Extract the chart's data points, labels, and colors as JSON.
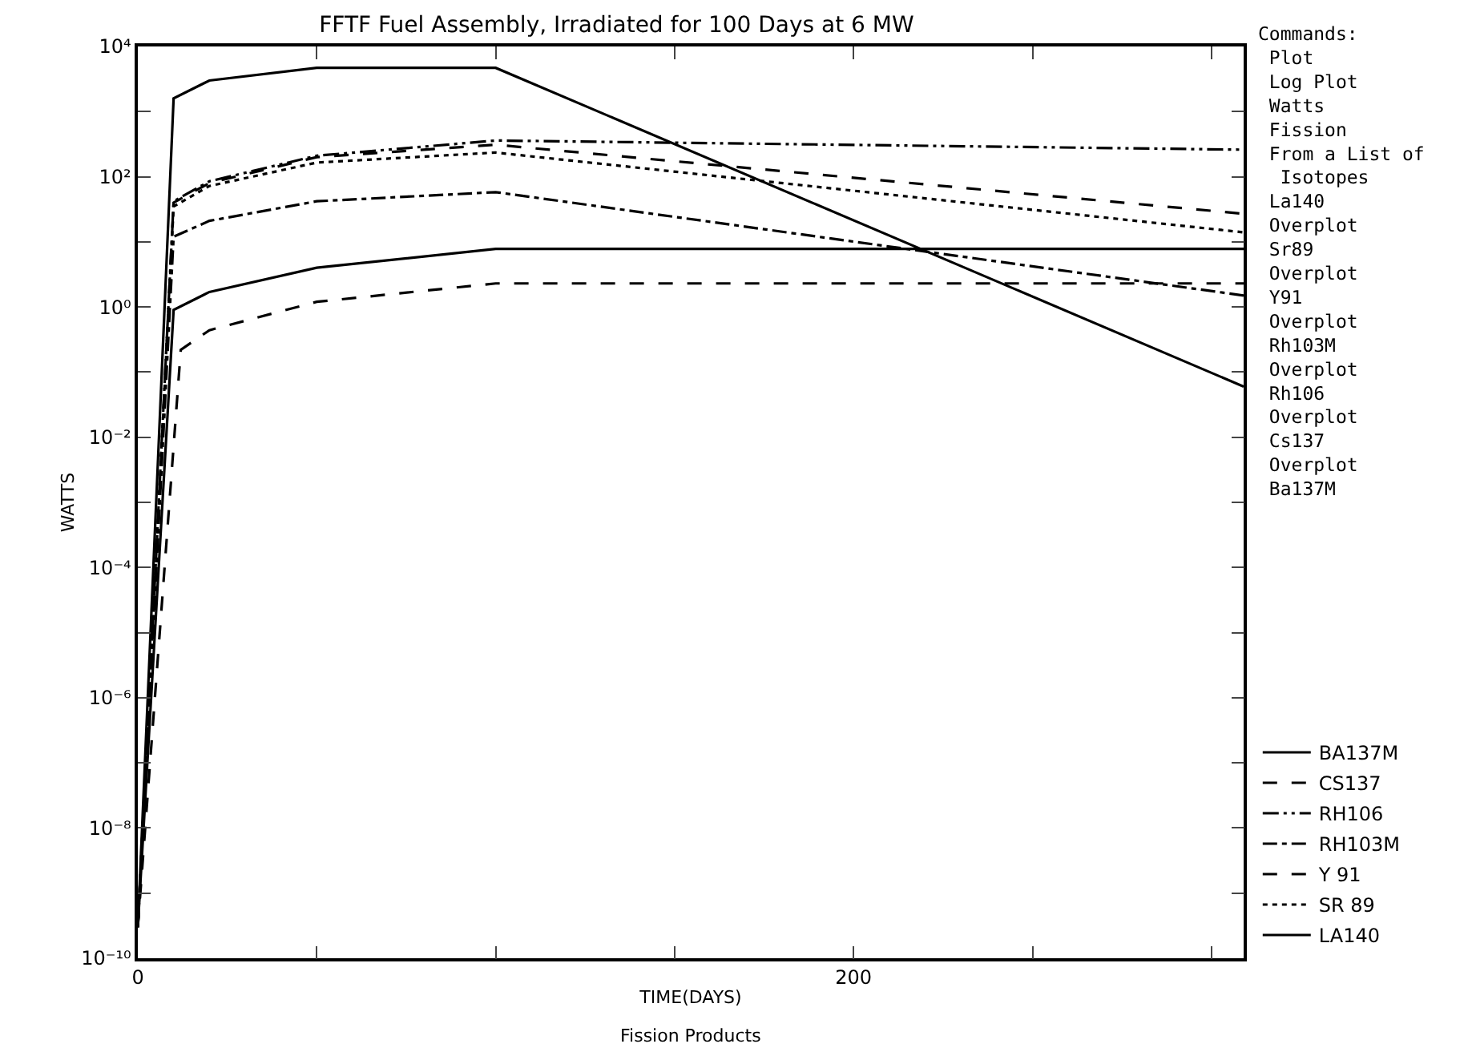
{
  "chart_data": {
    "type": "line",
    "title": "FFTF Fuel Assembly, Irradiated for 100 Days at 6 MW",
    "xlabel": "TIME(DAYS)",
    "ylabel": "WATTS",
    "annotations": [
      "Commands:\n Plot\n Log Plot\n Watts\n Fission\n From a List of\n  Isotopes\n La140\n Overplot\n Sr89\n Overplot\n Y91\n Overplot\n Rh103M\n Overplot\n Rh106\n Overplot\n Cs137\n Overplot\n Ba137M",
      "Fission Products"
    ],
    "log": "y",
    "grid": false,
    "legend": "bottom right",
    "marker": "none",
    "xlim": [
      0,
      309
    ],
    "xticks": [
      0,
      {
        "value": 50,
        "label": null
      },
      {
        "value": 100,
        "label": null
      },
      {
        "value": 150,
        "label": null
      },
      200,
      {
        "value": 250,
        "label": null
      },
      {
        "value": 300,
        "label": null
      }
    ],
    "ylim": [
      1e-10,
      10000
    ],
    "yticks": [
      {
        "value": 1e-10,
        "label": "10⁻¹⁰"
      },
      {
        "value": 1e-09,
        "label": null
      },
      {
        "value": 1e-08,
        "label": "10⁻⁸"
      },
      {
        "value": 1e-07,
        "label": null
      },
      {
        "value": 1e-06,
        "label": "10⁻⁶"
      },
      {
        "value": 1e-05,
        "label": null
      },
      {
        "value": 0.0001,
        "label": "10⁻⁴"
      },
      {
        "value": 0.001,
        "label": null
      },
      {
        "value": 0.01,
        "label": "10⁻²"
      },
      {
        "value": 0.1,
        "label": null
      },
      {
        "value": 1,
        "label": "10⁰"
      },
      {
        "value": 10,
        "label": null
      },
      {
        "value": 100,
        "label": "10²"
      },
      {
        "value": 1000,
        "label": null
      },
      {
        "value": 10000,
        "label": "10⁴"
      }
    ],
    "series": [
      {
        "name": "BA137M",
        "color": "#000000",
        "line_style": "solid",
        "x": [
          0,
          10,
          20,
          50,
          100,
          309
        ],
        "values": [
          3e-10,
          0.9,
          1.7,
          4,
          7.8,
          7.8
        ]
      },
      {
        "name": "CS137",
        "color": "#000000",
        "line_style": "dashed",
        "x": [
          0,
          12,
          20,
          50,
          100,
          309
        ],
        "values": [
          3e-10,
          0.22,
          0.44,
          1.2,
          2.3,
          2.3
        ]
      },
      {
        "name": "RH106",
        "color": "#000000",
        "line_style": "dashdotdot",
        "x": [
          0,
          10,
          20,
          50,
          100,
          309
        ],
        "values": [
          3e-10,
          42,
          85,
          210,
          360,
          260
        ]
      },
      {
        "name": "RH103M",
        "color": "#000000",
        "line_style": "dashdot",
        "x": [
          0,
          10,
          20,
          50,
          100,
          309
        ],
        "values": [
          3e-10,
          12,
          21,
          42,
          58,
          1.5
        ]
      },
      {
        "name": "Y 91",
        "color": "#000000",
        "line_style": "dashed",
        "x": [
          0,
          10,
          20,
          50,
          100,
          309
        ],
        "values": [
          3e-10,
          40,
          80,
          200,
          310,
          27
        ]
      },
      {
        "name": "SR 89",
        "color": "#000000",
        "line_style": "dotted",
        "x": [
          0,
          10,
          20,
          50,
          100,
          309
        ],
        "values": [
          3e-10,
          35,
          72,
          165,
          235,
          14
        ]
      },
      {
        "name": "LA140",
        "color": "#000000",
        "line_style": "solid",
        "x": [
          0,
          10,
          20,
          50,
          100,
          309
        ],
        "values": [
          3e-10,
          1600,
          3000,
          4700,
          4700,
          0.06
        ]
      }
    ]
  }
}
